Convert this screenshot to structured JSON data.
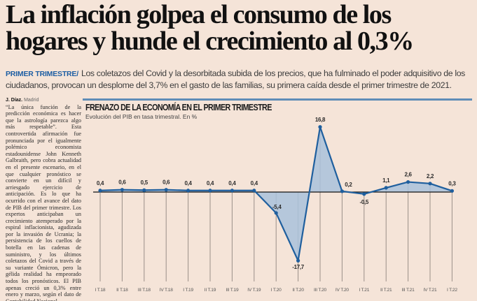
{
  "article": {
    "headline": "La inflación golpea el consumo de los hogares y hunde el crecimiento al 0,3%",
    "kicker": "PRIMER TRIMESTRE/",
    "lead": "Los coletazos del Covid y la desorbitada subida de los precios, que ha fulminado el poder adquisitivo de los ciudadanos, provocan un desplome del 3,7% en el gasto de las familias, su primera caída desde el primer trimestre de 2021.",
    "byline_author": "J. Díaz.",
    "byline_place": "Madrid",
    "body": "“La única función de la predicción económica es hacer que la astrología parezca algo más respetable”. Esta controvertida afirmación fue pronunciada por el igualmente polémico economista estadounidense John Kenneth Galbraith, pero cobra actualidad en el presente escenario, en el que cualquier pronóstico se convierte en un difícil y arriesgado ejercicio de anticipación. Es lo que ha ocurrido con el avance del dato de PIB del primer trimestre. Los expertos anticipaban un crecimiento atemperado por la espiral inflacionista, agudizada por la invasión de Ucrania; la persistencia de los cuellos de botella en las cadenas de suministro, y los últimos coletazos del Covid a través de su variante Ómicron, pero la gélida realidad ha empeorado todos los pronósticos. El PIB apenas creció un 0,3% entre enero y marzo, según el dato de Contabilidad Nacional"
  },
  "colors": {
    "background": "#f5e4d8",
    "kicker": "#1d5ea3",
    "rule": "#5f8db7",
    "line": "#1f5f9e",
    "area": "#a9c2dc",
    "gridline": "#9a8f88",
    "baseline": "#111111"
  },
  "chart_data": {
    "type": "area",
    "title": "FRENAZO DE LA ECONOMÍA EN EL PRIMER TRIMESTRE",
    "subtitle": "Evolución del PIB en tasa trimestral. En %",
    "xlabel": "",
    "ylabel": "",
    "ylim": [
      -17.7,
      16.8
    ],
    "grid": "vertical",
    "legend": "none",
    "categories": [
      "I T.18",
      "II T.18",
      "III T.18",
      "IV T.18",
      "I T.19",
      "II T.19",
      "III T.19",
      "IV T.19",
      "I T.20",
      "II T.20",
      "III T.20",
      "IV T.20",
      "I T.21",
      "II T.21",
      "III T.21",
      "IV T.21",
      "I T.22"
    ],
    "values": [
      0.4,
      0.6,
      0.5,
      0.6,
      0.4,
      0.4,
      0.4,
      0.4,
      -5.4,
      -17.7,
      16.8,
      0.2,
      -0.5,
      1.1,
      2.6,
      2.2,
      0.3
    ],
    "value_labels": [
      "0,4",
      "0,6",
      "0,5",
      "0,6",
      "0,4",
      "0,4",
      "0,4",
      "0,4",
      "-5,4",
      "-17,7",
      "16,8",
      "0,2",
      "-0,5",
      "1,1",
      "2,6",
      "2,2",
      "0,3"
    ]
  }
}
